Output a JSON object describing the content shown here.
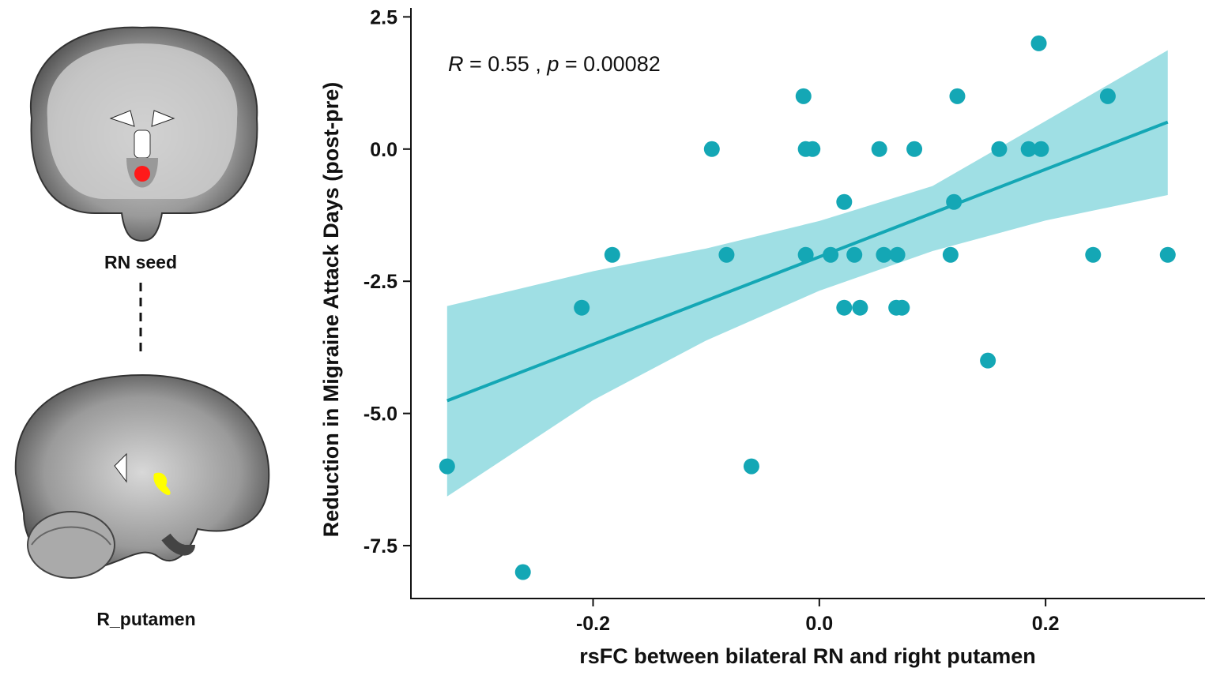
{
  "left_panel": {
    "seed_label": "RN seed",
    "target_label": "R_putamen",
    "seed_color": "#ff1a1a",
    "target_color": "#ffff00"
  },
  "chart_data": {
    "type": "scatter",
    "xlabel": "rsFC between bilateral RN and right putamen",
    "ylabel": "Reduction in Migraine Attack Days (post-pre)",
    "annotation": {
      "R_label": "R",
      "R_value": " = 0.55 , ",
      "p_label": "p",
      "p_value": " = 0.00082"
    },
    "xlim": [
      -0.361,
      0.341
    ],
    "ylim": [
      -8.5,
      2.67
    ],
    "xticks": [
      -0.2,
      0.0,
      0.2
    ],
    "xtick_labels": [
      "-0.2",
      "0.0",
      "0.2"
    ],
    "yticks": [
      2.5,
      0.0,
      -2.5,
      -5.0,
      -7.5
    ],
    "ytick_labels": [
      "2.5",
      "0.0",
      "-2.5",
      "-5.0",
      "-7.5"
    ],
    "grid": false,
    "point_color": "#14a7b5",
    "band_color": "#9fdfe4",
    "points": [
      [
        -0.329,
        -6
      ],
      [
        -0.262,
        -8
      ],
      [
        -0.21,
        -3
      ],
      [
        -0.183,
        -2
      ],
      [
        -0.095,
        0
      ],
      [
        -0.082,
        -2
      ],
      [
        -0.06,
        -6
      ],
      [
        -0.014,
        1
      ],
      [
        -0.012,
        0
      ],
      [
        -0.006,
        0
      ],
      [
        -0.012,
        -2
      ],
      [
        0.01,
        -2
      ],
      [
        0.022,
        -3
      ],
      [
        0.022,
        -1
      ],
      [
        0.031,
        -2
      ],
      [
        0.036,
        -3
      ],
      [
        0.053,
        0
      ],
      [
        0.057,
        -2
      ],
      [
        0.069,
        -2
      ],
      [
        0.068,
        -3
      ],
      [
        0.073,
        -3
      ],
      [
        0.084,
        0
      ],
      [
        0.116,
        -2
      ],
      [
        0.119,
        -1
      ],
      [
        0.122,
        1
      ],
      [
        0.149,
        -4
      ],
      [
        0.159,
        0
      ],
      [
        0.185,
        0
      ],
      [
        0.196,
        0
      ],
      [
        0.194,
        2
      ],
      [
        0.242,
        -2
      ],
      [
        0.255,
        1
      ],
      [
        0.308,
        -2
      ]
    ],
    "fit_line": {
      "x": [
        -0.329,
        0.308
      ],
      "y": [
        -4.76,
        0.51
      ]
    },
    "confidence_band": {
      "x": [
        -0.329,
        -0.2,
        -0.1,
        0.0,
        0.1,
        0.2,
        0.308
      ],
      "lower": [
        -6.57,
        -4.75,
        -3.62,
        -2.68,
        -1.93,
        -1.35,
        -0.87
      ],
      "upper": [
        -2.97,
        -2.31,
        -1.88,
        -1.36,
        -0.7,
        0.53,
        1.87
      ]
    }
  }
}
